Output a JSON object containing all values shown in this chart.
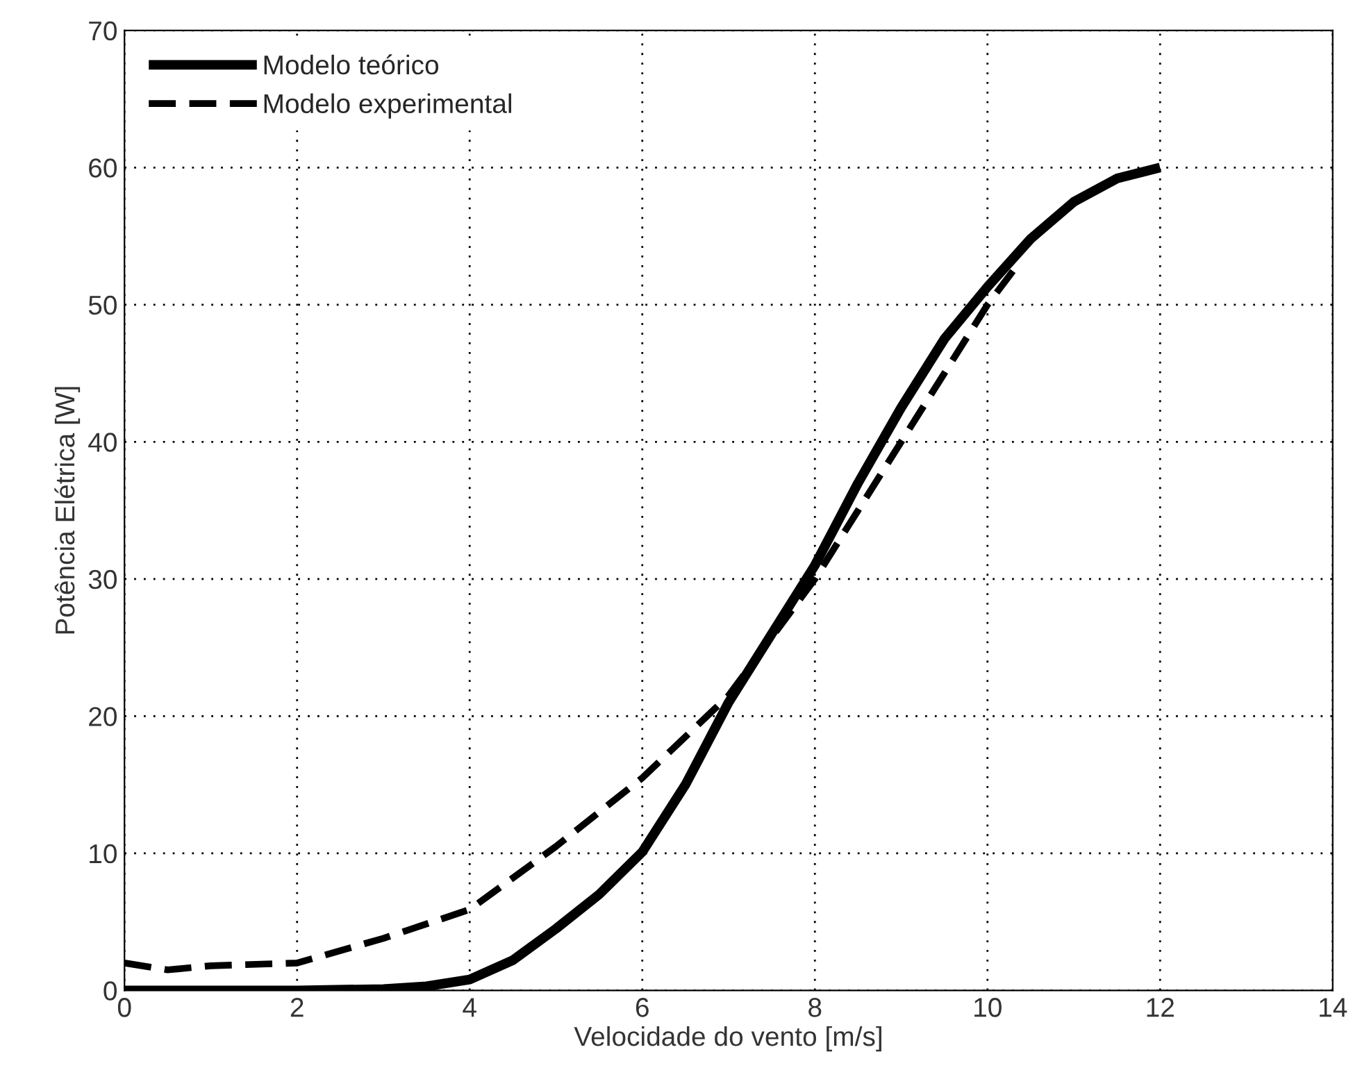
{
  "chart_data": {
    "type": "line",
    "xlabel": "Velocidade do vento [m/s]",
    "ylabel": "Potência Elétrica [W]",
    "xlim": [
      0,
      14
    ],
    "ylim": [
      0,
      70
    ],
    "xticks": [
      0,
      2,
      4,
      6,
      8,
      10,
      12,
      14
    ],
    "yticks": [
      0,
      10,
      20,
      30,
      40,
      50,
      60,
      70
    ],
    "grid": true,
    "legend": "top left",
    "series": [
      {
        "name": "Modelo teórico",
        "color": "#000000",
        "line_style": "solid",
        "x": [
          0,
          1,
          2,
          3,
          3.5,
          4,
          4.5,
          5,
          5.5,
          6,
          6.5,
          7,
          7.5,
          8,
          8.5,
          9,
          9.5,
          10,
          10.5,
          11,
          11.5,
          12
        ],
        "values": [
          0,
          0,
          0,
          0.1,
          0.3,
          0.8,
          2.2,
          4.5,
          7,
          10.1,
          15,
          21,
          26,
          31,
          37,
          42.5,
          47.5,
          51.3,
          54.8,
          57.5,
          59.2,
          60
        ]
      },
      {
        "name": "Modelo experimental",
        "color": "#000000",
        "line_style": "dashed",
        "x": [
          0,
          0.5,
          1,
          2,
          3,
          4,
          5,
          6,
          7,
          8,
          8.5,
          9,
          9.5,
          10,
          10.3
        ],
        "values": [
          2,
          1.5,
          1.8,
          2,
          3.8,
          5.9,
          10.5,
          15.5,
          21.5,
          30,
          35,
          40,
          45,
          50,
          52.5
        ]
      }
    ]
  }
}
